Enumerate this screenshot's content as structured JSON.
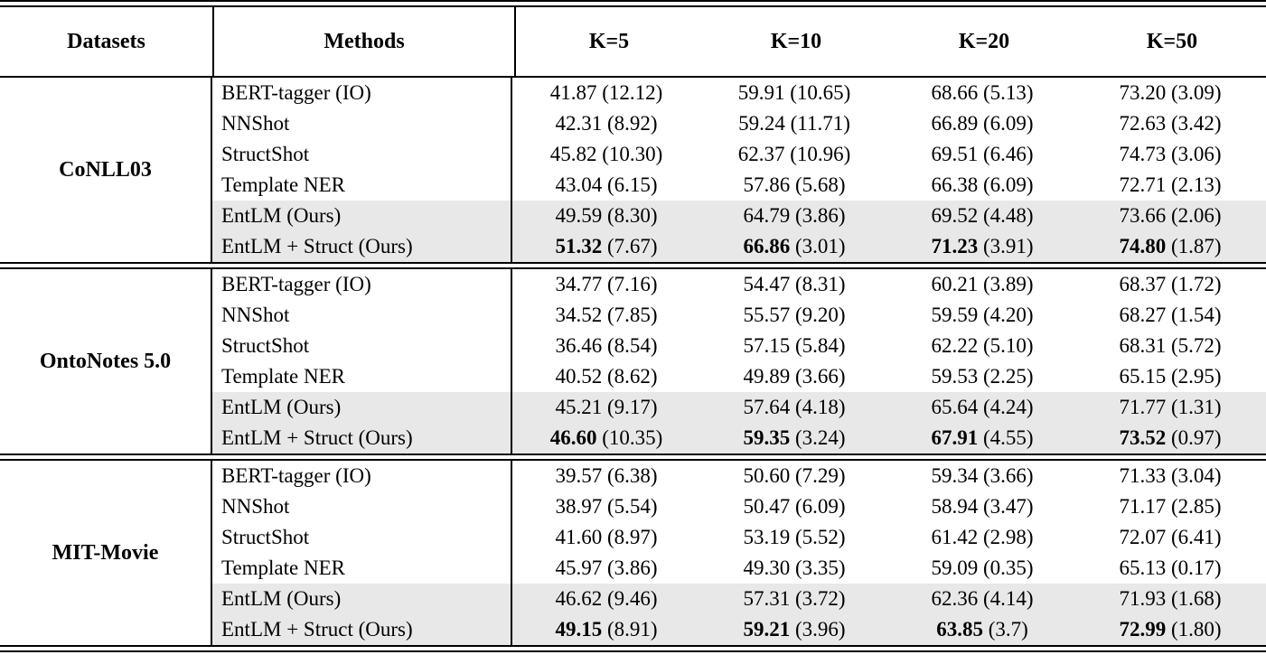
{
  "colors": {
    "highlight_row": "#e8e8e8",
    "rule": "#000000",
    "background": "#ffffff"
  },
  "table": {
    "columns": [
      "Datasets",
      "Methods",
      "K=5",
      "K=10",
      "K=20",
      "K=50"
    ],
    "sections": [
      {
        "dataset": "CoNLL03",
        "rows": [
          {
            "method": "BERT-tagger (IO)",
            "highlight": false,
            "bold": false,
            "scores": [
              {
                "mean": "41.87",
                "std": "(12.12)"
              },
              {
                "mean": "59.91",
                "std": "(10.65)"
              },
              {
                "mean": "68.66",
                "std": "(5.13)"
              },
              {
                "mean": "73.20",
                "std": "(3.09)"
              }
            ]
          },
          {
            "method": "NNShot",
            "highlight": false,
            "bold": false,
            "scores": [
              {
                "mean": "42.31",
                "std": "(8.92)"
              },
              {
                "mean": "59.24",
                "std": "(11.71)"
              },
              {
                "mean": "66.89",
                "std": "(6.09)"
              },
              {
                "mean": "72.63",
                "std": "(3.42)"
              }
            ]
          },
          {
            "method": "StructShot",
            "highlight": false,
            "bold": false,
            "scores": [
              {
                "mean": "45.82",
                "std": "(10.30)"
              },
              {
                "mean": "62.37",
                "std": "(10.96)"
              },
              {
                "mean": "69.51",
                "std": "(6.46)"
              },
              {
                "mean": "74.73",
                "std": "(3.06)"
              }
            ]
          },
          {
            "method": "Template NER",
            "highlight": false,
            "bold": false,
            "scores": [
              {
                "mean": "43.04",
                "std": "(6.15)"
              },
              {
                "mean": "57.86",
                "std": "(5.68)"
              },
              {
                "mean": "66.38",
                "std": "(6.09)"
              },
              {
                "mean": "72.71",
                "std": "(2.13)"
              }
            ]
          },
          {
            "method": "EntLM (Ours)",
            "highlight": true,
            "bold": false,
            "scores": [
              {
                "mean": "49.59",
                "std": "(8.30)"
              },
              {
                "mean": "64.79",
                "std": "(3.86)"
              },
              {
                "mean": "69.52",
                "std": "(4.48)"
              },
              {
                "mean": "73.66",
                "std": "(2.06)"
              }
            ]
          },
          {
            "method": "EntLM + Struct (Ours)",
            "highlight": true,
            "bold": true,
            "scores": [
              {
                "mean": "51.32",
                "std": "(7.67)"
              },
              {
                "mean": "66.86",
                "std": "(3.01)"
              },
              {
                "mean": "71.23",
                "std": "(3.91)"
              },
              {
                "mean": "74.80",
                "std": "(1.87)"
              }
            ]
          }
        ]
      },
      {
        "dataset": "OntoNotes 5.0",
        "rows": [
          {
            "method": "BERT-tagger (IO)",
            "highlight": false,
            "bold": false,
            "scores": [
              {
                "mean": "34.77",
                "std": "(7.16)"
              },
              {
                "mean": "54.47",
                "std": "(8.31)"
              },
              {
                "mean": "60.21",
                "std": "(3.89)"
              },
              {
                "mean": "68.37",
                "std": "(1.72)"
              }
            ]
          },
          {
            "method": "NNShot",
            "highlight": false,
            "bold": false,
            "scores": [
              {
                "mean": "34.52",
                "std": "(7.85)"
              },
              {
                "mean": "55.57",
                "std": "(9.20)"
              },
              {
                "mean": "59.59",
                "std": "(4.20)"
              },
              {
                "mean": "68.27",
                "std": "(1.54)"
              }
            ]
          },
          {
            "method": "StructShot",
            "highlight": false,
            "bold": false,
            "scores": [
              {
                "mean": "36.46",
                "std": "(8.54)"
              },
              {
                "mean": "57.15",
                "std": "(5.84)"
              },
              {
                "mean": "62.22",
                "std": "(5.10)"
              },
              {
                "mean": "68.31",
                "std": "(5.72)"
              }
            ]
          },
          {
            "method": "Template NER",
            "highlight": false,
            "bold": false,
            "scores": [
              {
                "mean": "40.52",
                "std": "(8.62)"
              },
              {
                "mean": "49.89",
                "std": "(3.66)"
              },
              {
                "mean": "59.53",
                "std": "(2.25)"
              },
              {
                "mean": "65.15",
                "std": "(2.95)"
              }
            ]
          },
          {
            "method": "EntLM (Ours)",
            "highlight": true,
            "bold": false,
            "scores": [
              {
                "mean": "45.21",
                "std": "(9.17)"
              },
              {
                "mean": "57.64",
                "std": "(4.18)"
              },
              {
                "mean": "65.64",
                "std": "(4.24)"
              },
              {
                "mean": "71.77",
                "std": "(1.31)"
              }
            ]
          },
          {
            "method": "EntLM + Struct (Ours)",
            "highlight": true,
            "bold": true,
            "scores": [
              {
                "mean": "46.60",
                "std": "(10.35)"
              },
              {
                "mean": "59.35",
                "std": "(3.24)"
              },
              {
                "mean": "67.91",
                "std": "(4.55)"
              },
              {
                "mean": "73.52",
                "std": "(0.97)"
              }
            ]
          }
        ]
      },
      {
        "dataset": "MIT-Movie",
        "rows": [
          {
            "method": "BERT-tagger (IO)",
            "highlight": false,
            "bold": false,
            "scores": [
              {
                "mean": "39.57",
                "std": "(6.38)"
              },
              {
                "mean": "50.60",
                "std": "(7.29)"
              },
              {
                "mean": "59.34",
                "std": "(3.66)"
              },
              {
                "mean": "71.33",
                "std": "(3.04)"
              }
            ]
          },
          {
            "method": "NNShot",
            "highlight": false,
            "bold": false,
            "scores": [
              {
                "mean": "38.97",
                "std": "(5.54)"
              },
              {
                "mean": "50.47",
                "std": "(6.09)"
              },
              {
                "mean": "58.94",
                "std": "(3.47)"
              },
              {
                "mean": "71.17",
                "std": "(2.85)"
              }
            ]
          },
          {
            "method": "StructShot",
            "highlight": false,
            "bold": false,
            "scores": [
              {
                "mean": "41.60",
                "std": "(8.97)"
              },
              {
                "mean": "53.19",
                "std": "(5.52)"
              },
              {
                "mean": "61.42",
                "std": "(2.98)"
              },
              {
                "mean": "72.07",
                "std": "(6.41)"
              }
            ]
          },
          {
            "method": "Template NER",
            "highlight": false,
            "bold": false,
            "scores": [
              {
                "mean": "45.97",
                "std": "(3.86)"
              },
              {
                "mean": "49.30",
                "std": "(3.35)"
              },
              {
                "mean": "59.09",
                "std": "(0.35)"
              },
              {
                "mean": "65.13",
                "std": "(0.17)"
              }
            ]
          },
          {
            "method": "EntLM (Ours)",
            "highlight": true,
            "bold": false,
            "scores": [
              {
                "mean": "46.62",
                "std": "(9.46)"
              },
              {
                "mean": "57.31",
                "std": "(3.72)"
              },
              {
                "mean": "62.36",
                "std": "(4.14)"
              },
              {
                "mean": "71.93",
                "std": "(1.68)"
              }
            ]
          },
          {
            "method": "EntLM + Struct (Ours)",
            "highlight": true,
            "bold": true,
            "scores": [
              {
                "mean": "49.15",
                "std": "(8.91)"
              },
              {
                "mean": "59.21",
                "std": "(3.96)"
              },
              {
                "mean": "63.85",
                "std": "(3.7)"
              },
              {
                "mean": "72.99",
                "std": "(1.80)"
              }
            ]
          }
        ]
      }
    ]
  }
}
